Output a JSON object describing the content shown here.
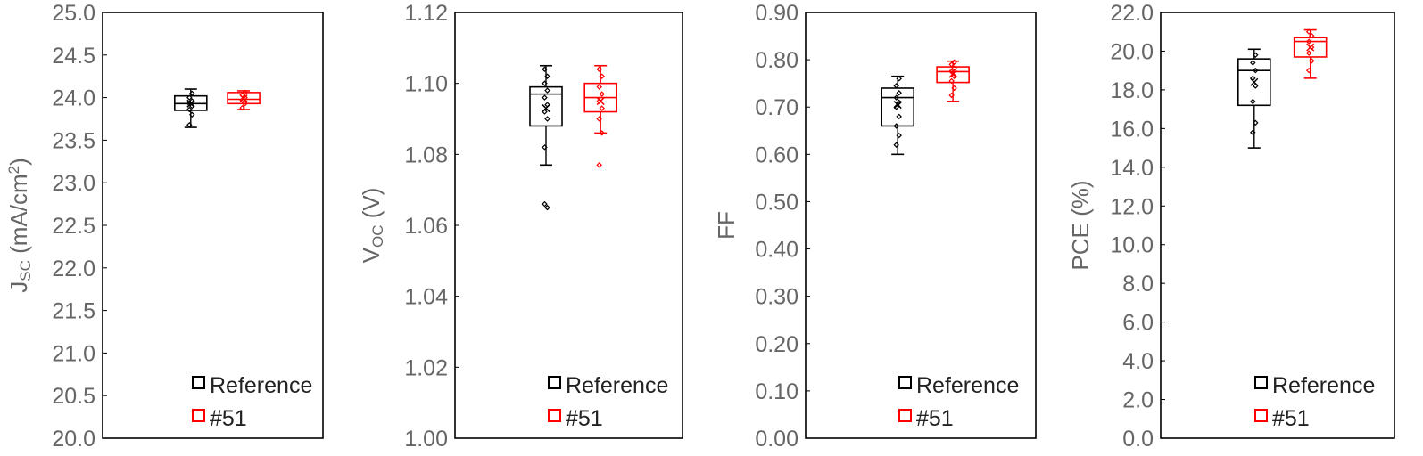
{
  "colors": {
    "reference": "#000000",
    "sample": "#ff0000",
    "axis_text": "#666666"
  },
  "chart_data": [
    {
      "type": "box",
      "ylabel": {
        "main": "J",
        "sub": "SC",
        "rest": " (mA/cm",
        "sup": "2",
        "end": ")"
      },
      "ylim": [
        20.0,
        25.0
      ],
      "yticks": [
        "20.0",
        "20.5",
        "21.0",
        "21.5",
        "22.0",
        "22.5",
        "23.0",
        "23.5",
        "24.0",
        "24.5",
        "25.0"
      ],
      "legend": [
        "Reference",
        "#51"
      ],
      "legend_position": "bottom-right",
      "series": [
        {
          "name": "Reference",
          "min": 23.65,
          "q1": 23.85,
          "median": 23.93,
          "q3": 24.02,
          "max": 24.1,
          "mean": 23.93,
          "points": [
            23.68,
            23.8,
            23.86,
            23.9,
            23.93,
            23.96,
            24.0,
            24.05
          ]
        },
        {
          "name": "#51",
          "min": 23.86,
          "q1": 23.93,
          "median": 23.98,
          "q3": 24.06,
          "max": 24.08,
          "mean": 23.99,
          "points": [
            23.88,
            23.93,
            23.97,
            24.0,
            24.03,
            24.06
          ]
        }
      ]
    },
    {
      "type": "box",
      "ylabel": {
        "main": "V",
        "sub": "OC",
        "rest": " (V)",
        "sup": "",
        "end": ""
      },
      "ylim": [
        1.0,
        1.12
      ],
      "yticks": [
        "1.00",
        "1.02",
        "1.04",
        "1.06",
        "1.08",
        "1.10",
        "1.12"
      ],
      "legend": [
        "Reference",
        "#51"
      ],
      "legend_position": "bottom-right",
      "series": [
        {
          "name": "Reference",
          "min": 1.077,
          "q1": 1.088,
          "median": 1.097,
          "q3": 1.099,
          "max": 1.105,
          "mean": 1.093,
          "points": [
            1.066,
            1.065,
            1.082,
            1.09,
            1.092,
            1.094,
            1.096,
            1.098,
            1.1,
            1.102,
            1.104
          ]
        },
        {
          "name": "#51",
          "min": 1.086,
          "q1": 1.092,
          "median": 1.096,
          "q3": 1.1,
          "max": 1.105,
          "mean": 1.095,
          "points": [
            1.077,
            1.086,
            1.09,
            1.093,
            1.095,
            1.097,
            1.099,
            1.102,
            1.104
          ]
        }
      ]
    },
    {
      "type": "box",
      "ylabel": {
        "main": "FF",
        "sub": "",
        "rest": "",
        "sup": "",
        "end": ""
      },
      "ylim": [
        0.0,
        0.9
      ],
      "yticks": [
        "0.00",
        "0.10",
        "0.20",
        "0.30",
        "0.40",
        "0.50",
        "0.60",
        "0.70",
        "0.80",
        "0.90"
      ],
      "legend": [
        "Reference",
        "#51"
      ],
      "legend_position": "bottom-right",
      "series": [
        {
          "name": "Reference",
          "min": 0.6,
          "q1": 0.66,
          "median": 0.72,
          "q3": 0.74,
          "max": 0.765,
          "mean": 0.705,
          "points": [
            0.62,
            0.64,
            0.66,
            0.68,
            0.7,
            0.71,
            0.72,
            0.73,
            0.745,
            0.76
          ]
        },
        {
          "name": "#51",
          "min": 0.712,
          "q1": 0.752,
          "median": 0.775,
          "q3": 0.785,
          "max": 0.797,
          "mean": 0.77,
          "points": [
            0.725,
            0.74,
            0.755,
            0.765,
            0.775,
            0.782,
            0.79,
            0.795
          ]
        }
      ]
    },
    {
      "type": "box",
      "ylabel": {
        "main": "PCE (%)",
        "sub": "",
        "rest": "",
        "sup": "",
        "end": ""
      },
      "ylim": [
        0.0,
        22.0
      ],
      "yticks": [
        "0.0",
        "2.0",
        "4.0",
        "6.0",
        "8.0",
        "10.0",
        "12.0",
        "14.0",
        "16.0",
        "18.0",
        "20.0",
        "22.0"
      ],
      "legend": [
        "Reference",
        "#51"
      ],
      "legend_position": "bottom-right",
      "series": [
        {
          "name": "Reference",
          "min": 15.0,
          "q1": 17.2,
          "median": 19.0,
          "q3": 19.6,
          "max": 20.1,
          "mean": 18.4,
          "points": [
            15.8,
            16.3,
            17.4,
            18.2,
            18.6,
            19.0,
            19.4,
            19.8
          ]
        },
        {
          "name": "#51",
          "min": 18.6,
          "q1": 19.7,
          "median": 20.5,
          "q3": 20.7,
          "max": 21.1,
          "mean": 20.2,
          "points": [
            19.0,
            19.5,
            19.9,
            20.2,
            20.5,
            20.8,
            21.0
          ]
        }
      ]
    }
  ]
}
